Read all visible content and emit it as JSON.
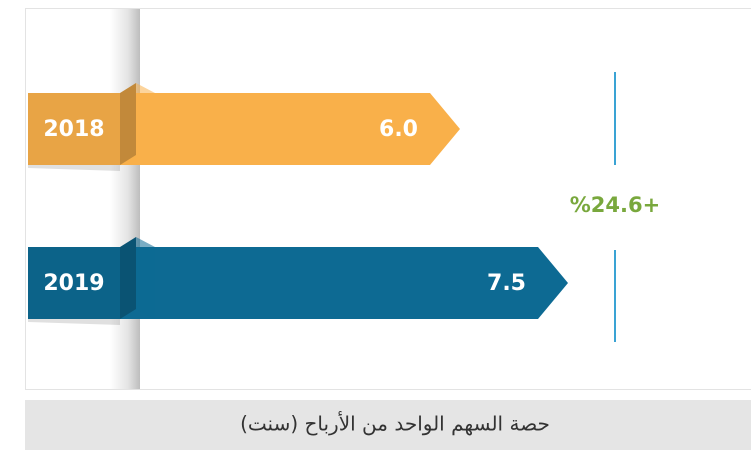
{
  "chart_data": {
    "type": "bar",
    "orientation": "horizontal",
    "categories": [
      "2018",
      "2019"
    ],
    "values": [
      6.0,
      7.5
    ],
    "value_labels": [
      "6.0",
      "7.5"
    ],
    "colors": [
      "#f9b04a",
      "#0d6a93"
    ],
    "annotation": "%24.6+",
    "annotation_color": "#79a83d",
    "caption": "حصة السهم الواحد من الأرباح (سنت)"
  }
}
